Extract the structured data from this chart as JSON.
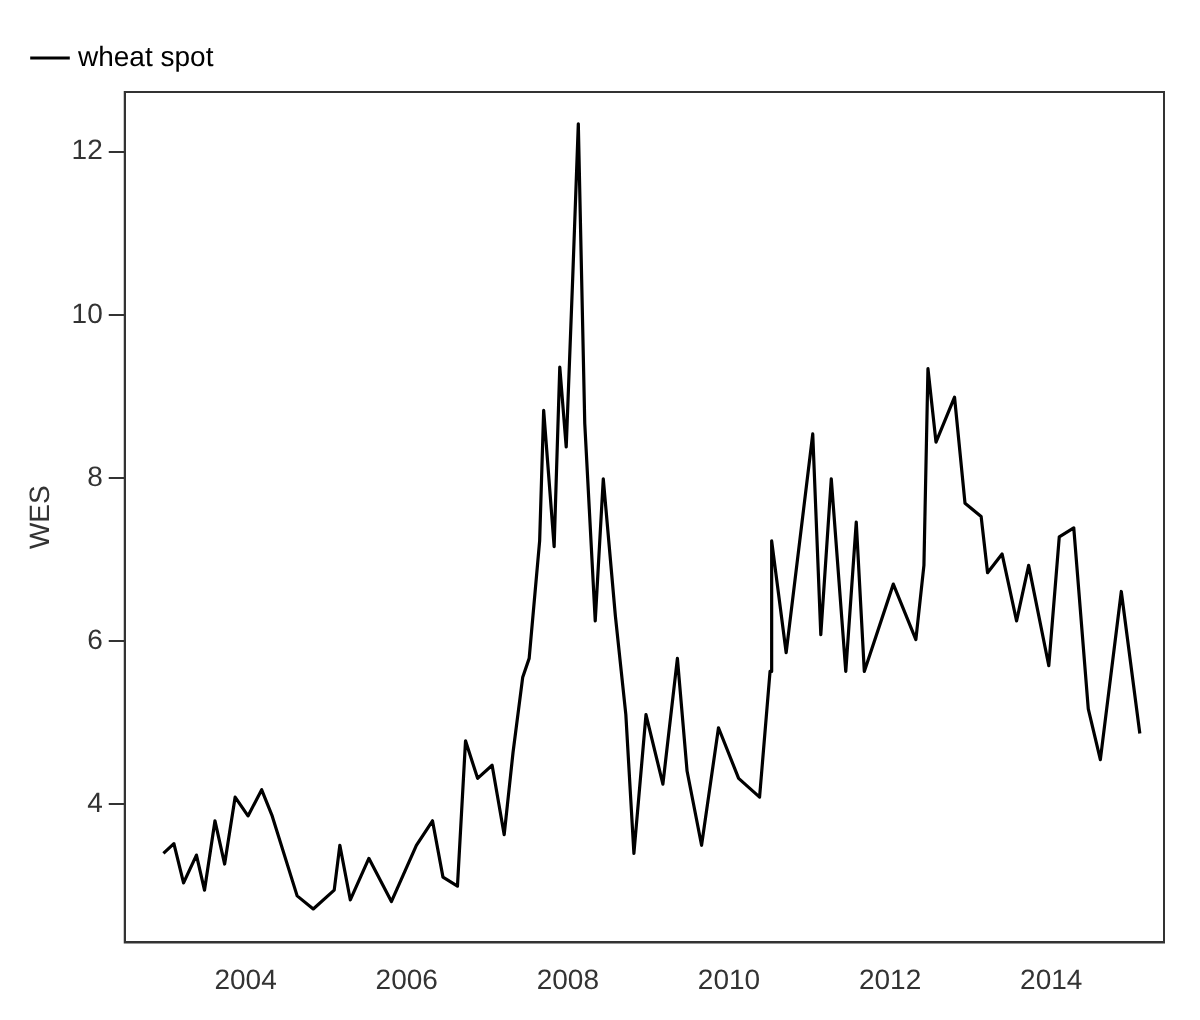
{
  "chart_data": {
    "type": "line",
    "ylabel": "WES",
    "legend": "top left",
    "marker": "none",
    "line_style": "solid",
    "grid": false,
    "xlim": [
      2002.5,
      2015.4
    ],
    "xticks": [
      2004,
      2006,
      2008,
      2010,
      2012,
      2014
    ],
    "ylim": [
      2.31,
      12.73
    ],
    "yticks": [
      4,
      6,
      8,
      10,
      12
    ],
    "series": [
      {
        "name": "wheat spot",
        "color": "#000000",
        "x": [
          2002.98,
          2003.11,
          2003.23,
          2003.39,
          2003.49,
          2003.62,
          2003.74,
          2003.87,
          2004.03,
          2004.2,
          2004.33,
          2004.64,
          2004.84,
          2005.1,
          2005.17,
          2005.3,
          2005.53,
          2005.81,
          2006.12,
          2006.32,
          2006.45,
          2006.63,
          2006.73,
          2006.88,
          2007.06,
          2007.21,
          2007.32,
          2007.44,
          2007.52,
          2007.65,
          2007.7,
          2007.83,
          2007.9,
          2007.98,
          2008.06,
          2008.13,
          2008.21,
          2008.34,
          2008.44,
          2008.59,
          2008.72,
          2008.82,
          2008.97,
          2009.18,
          2009.36,
          2009.48,
          2009.66,
          2009.87,
          2010.12,
          2010.38,
          2010.51,
          2010.53,
          2010.71,
          2011.04,
          2011.14,
          2011.27,
          2011.45,
          2011.58,
          2011.68,
          2012.04,
          2012.32,
          2012.42,
          2012.47,
          2012.57,
          2012.8,
          2012.93,
          2013.13,
          2013.21,
          2013.39,
          2013.57,
          2013.72,
          2013.97,
          2014.1,
          2014.28,
          2014.46,
          2014.61,
          2014.87,
          2015.1
        ],
        "values": [
          3.4,
          3.52,
          3.04,
          3.38,
          2.95,
          3.8,
          3.27,
          4.09,
          3.86,
          4.18,
          3.86,
          2.88,
          2.72,
          2.95,
          3.5,
          2.83,
          3.34,
          2.81,
          3.5,
          3.8,
          3.11,
          3.0,
          4.78,
          4.32,
          4.48,
          3.63,
          4.64,
          5.56,
          5.79,
          7.23,
          8.83,
          7.16,
          9.36,
          8.38,
          10.44,
          12.34,
          8.67,
          6.25,
          7.99,
          6.31,
          5.1,
          3.4,
          5.1,
          4.25,
          5.79,
          4.41,
          3.5,
          4.94,
          4.32,
          4.09,
          5.63,
          7.23,
          5.86,
          8.54,
          6.08,
          7.99,
          5.63,
          7.46,
          5.63,
          6.7,
          6.02,
          6.93,
          9.34,
          8.44,
          8.99,
          7.69,
          7.53,
          6.84,
          7.07,
          6.25,
          6.93,
          5.7,
          7.28,
          7.39,
          5.17,
          4.55,
          6.61,
          4.87
        ]
      }
    ]
  }
}
